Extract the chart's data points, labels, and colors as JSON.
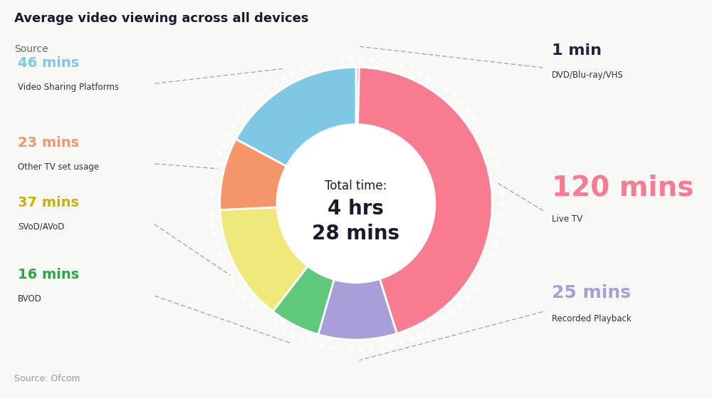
{
  "title": "Average video viewing across all devices",
  "subtitle": "Source",
  "source": "Source: Ofcom",
  "total_label_line1": "Total time:",
  "total_label_line2": "4 hrs\n28 mins",
  "bg_color": "#F8F8F6",
  "center_text_color": "#1a1a2e",
  "clockwise_segments": [
    {
      "label": "DVD/Blu-ray/VHS",
      "value": 1,
      "color": "#F4A0A8"
    },
    {
      "label": "Live TV",
      "value": 120,
      "color": "#F87B8F"
    },
    {
      "label": "Recorded Playback",
      "value": 25,
      "color": "#A89FD8"
    },
    {
      "label": "BVOD",
      "value": 16,
      "color": "#5EC97A"
    },
    {
      "label": "SVoD/AVoD",
      "value": 37,
      "color": "#F0E87A"
    },
    {
      "label": "Other TV set usage",
      "value": 23,
      "color": "#F4956A"
    },
    {
      "label": "Video Sharing Platforms",
      "value": 46,
      "color": "#7EC8E3"
    }
  ],
  "left_annotations": [
    {
      "value": "46 mins",
      "label": "Video Sharing Platforms",
      "value_color": "#7EC8E3",
      "seg_index": 6
    },
    {
      "value": "23 mins",
      "label": "Other TV set usage",
      "value_color": "#F4956A",
      "seg_index": 5
    },
    {
      "value": "37 mins",
      "label": "SVoD/AVoD",
      "value_color": "#C8B400",
      "seg_index": 4
    },
    {
      "value": "16 mins",
      "label": "BVOD",
      "value_color": "#28A845",
      "seg_index": 3
    }
  ],
  "right_annotations": [
    {
      "value": "1 min",
      "label": "DVD/Blu-ray/VHS",
      "value_color": "#222244",
      "seg_index": 0,
      "value_fontsize": 16
    },
    {
      "value": "120 mins",
      "label": "Live TV",
      "value_color": "#F87B8F",
      "seg_index": 1,
      "value_fontsize": 28
    },
    {
      "value": "25 mins",
      "label": "Recorded Playback",
      "value_color": "#A89FD8",
      "seg_index": 2,
      "value_fontsize": 18
    }
  ]
}
